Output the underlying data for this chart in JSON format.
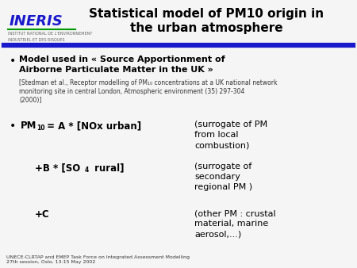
{
  "title_line1": "Statistical model of PM10 origin in",
  "title_line2": "the urban atmosphere",
  "slide_bg": "#f5f5f5",
  "title_color": "#000000",
  "divider_color": "#1a1acc",
  "bullet1_bold": "Model used in « Source Apportionment of\nAirborne Particulate Matter in the UK »",
  "bullet1_ref": "[Stedman et al., Receptor modelling of PM₁₀ concentrations at a UK national network\nmonitoring site in central London, Atmospheric environment (35) 297-304\n(2000)]",
  "eq_comment1": "(surrogate of PM\nfrom local\ncombustion)",
  "eq_comment2": "(surrogate of\nsecondary\nregional PM )",
  "eq_comment3": "(other PM : crustal\nmaterial, marine\naerosol,...)",
  "footer": "UNECE-CLRTAP and EMEP Task Force on Integrated Assessment Modelling\n27th session, Oslo, 13-15 May 2002",
  "ineris_color": "#1a1acc",
  "ineris_sub_color": "#666666",
  "text_color": "#000000",
  "ref_color": "#333333"
}
